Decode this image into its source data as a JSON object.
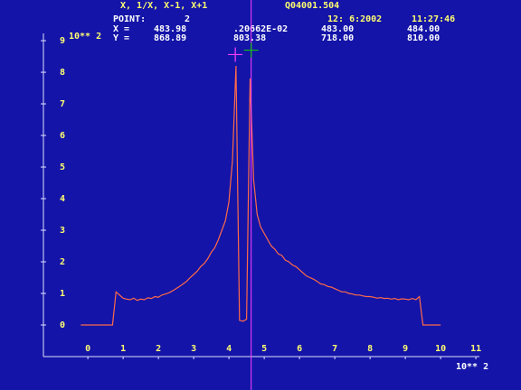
{
  "chart_data": {
    "type": "line",
    "title": "X, 1/X, X-1, X+1",
    "file": "Q04001.504",
    "date": "12: 6:2002",
    "time": "11:27:46",
    "readout": {
      "point_label": "POINT:",
      "point": "2",
      "rows": [
        [
          "X =",
          "483.98",
          ".20662E-02",
          "483.00",
          "484.00"
        ],
        [
          "Y =",
          "868.89",
          "803.38",
          "718.00",
          "810.00"
        ]
      ]
    },
    "x_multiplier": "10** 2",
    "y_multiplier": "10** 2",
    "xlim": [
      -1.26,
      11.1
    ],
    "ylim": [
      -1,
      9.23
    ],
    "xticks": [
      0,
      1,
      2,
      3,
      4,
      5,
      6,
      7,
      8,
      9,
      10,
      11
    ],
    "yticks": [
      0,
      1,
      2,
      3,
      4,
      5,
      6,
      7,
      8,
      9
    ],
    "color": "#ff6a48",
    "x": [
      -0.2,
      -0.1,
      0,
      0.1,
      0.2,
      0.3,
      0.4,
      0.5,
      0.6,
      0.7,
      0.8,
      0.9,
      1.0,
      1.1,
      1.2,
      1.3,
      1.4,
      1.5,
      1.6,
      1.7,
      1.8,
      1.9,
      2.0,
      2.1,
      2.2,
      2.3,
      2.4,
      2.5,
      2.6,
      2.7,
      2.8,
      2.9,
      3.0,
      3.1,
      3.2,
      3.3,
      3.4,
      3.5,
      3.6,
      3.7,
      3.8,
      3.9,
      4.0,
      4.1,
      4.2,
      4.3,
      4.4,
      4.5,
      4.6,
      4.7,
      4.8,
      4.9,
      5.0,
      5.1,
      5.2,
      5.3,
      5.4,
      5.5,
      5.6,
      5.7,
      5.8,
      5.9,
      6.0,
      6.1,
      6.2,
      6.3,
      6.4,
      6.5,
      6.6,
      6.7,
      6.8,
      6.9,
      7.0,
      7.1,
      7.2,
      7.3,
      7.4,
      7.5,
      7.6,
      7.7,
      7.8,
      7.9,
      8.0,
      8.1,
      8.2,
      8.3,
      8.4,
      8.5,
      8.6,
      8.7,
      8.8,
      8.9,
      9.0,
      9.1,
      9.2,
      9.3,
      9.4,
      9.5,
      9.6,
      9.7,
      9.8,
      9.9,
      10.0
    ],
    "values": [
      0,
      0,
      0,
      0,
      0,
      0,
      0,
      0,
      0,
      0,
      1.05,
      0.95,
      0.85,
      0.82,
      0.8,
      0.85,
      0.78,
      0.82,
      0.8,
      0.86,
      0.84,
      0.9,
      0.88,
      0.95,
      0.98,
      1.02,
      1.08,
      1.15,
      1.22,
      1.3,
      1.38,
      1.5,
      1.6,
      1.7,
      1.85,
      1.95,
      2.1,
      2.3,
      2.45,
      2.7,
      3.0,
      3.3,
      3.9,
      5.2,
      8.2,
      0.15,
      0.12,
      0.18,
      7.8,
      4.6,
      3.5,
      3.1,
      2.9,
      2.7,
      2.5,
      2.4,
      2.25,
      2.2,
      2.05,
      2.0,
      1.9,
      1.85,
      1.75,
      1.65,
      1.55,
      1.5,
      1.45,
      1.38,
      1.3,
      1.28,
      1.22,
      1.2,
      1.15,
      1.1,
      1.05,
      1.05,
      1.0,
      0.98,
      0.95,
      0.95,
      0.92,
      0.9,
      0.9,
      0.88,
      0.85,
      0.87,
      0.84,
      0.85,
      0.82,
      0.84,
      0.8,
      0.83,
      0.82,
      0.8,
      0.84,
      0.8,
      0.9,
      0,
      0,
      0,
      0,
      0,
      0
    ],
    "cursors": [
      {
        "x": 4.18,
        "y": 8.56,
        "color": "#ff40ff"
      },
      {
        "x": 4.63,
        "y": 8.7,
        "color": "#10c010"
      }
    ]
  }
}
